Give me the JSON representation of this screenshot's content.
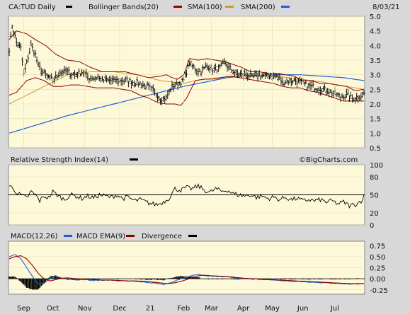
{
  "chart_data": [
    {
      "type": "line",
      "panel": "price",
      "title_symbol": "CA:TUD Daily",
      "legend": [
        {
          "name": "CA:TUD Daily",
          "color": "#000000"
        },
        {
          "name": "Bollinger Bands(20)",
          "color": "#8b0000"
        },
        {
          "name": "SMA(100)",
          "color": "#d4962a"
        },
        {
          "name": "SMA(200)",
          "color": "#1a5fd6"
        }
      ],
      "date_label": "8/03/21",
      "ylim": [
        0.5,
        5.0
      ],
      "yticks": [
        "5.0",
        "4.5",
        "4.0",
        "3.5",
        "3.0",
        "2.5",
        "2.0",
        "1.5",
        "1.0",
        "0.5"
      ],
      "x_months": [
        "Sep",
        "Oct",
        "Nov",
        "Dec",
        "21",
        "Feb",
        "Mar",
        "Apr",
        "May",
        "Jun",
        "Jul"
      ],
      "x_month_index": [
        10,
        30,
        52,
        76,
        97,
        120,
        139,
        161,
        181,
        202,
        224
      ],
      "n_days": 245,
      "price_knots": [
        [
          0,
          3.9
        ],
        [
          2,
          4.7
        ],
        [
          5,
          4.1
        ],
        [
          8,
          3.9
        ],
        [
          10,
          3.0
        ],
        [
          12,
          3.4
        ],
        [
          15,
          4.0
        ],
        [
          18,
          3.7
        ],
        [
          20,
          3.3
        ],
        [
          25,
          3.0
        ],
        [
          30,
          2.8
        ],
        [
          35,
          3.1
        ],
        [
          40,
          3.1
        ],
        [
          45,
          3.0
        ],
        [
          50,
          3.1
        ],
        [
          55,
          2.9
        ],
        [
          60,
          2.9
        ],
        [
          65,
          2.8
        ],
        [
          70,
          2.8
        ],
        [
          75,
          2.8
        ],
        [
          80,
          2.8
        ],
        [
          85,
          2.75
        ],
        [
          90,
          2.7
        ],
        [
          95,
          2.6
        ],
        [
          100,
          2.4
        ],
        [
          104,
          2.2
        ],
        [
          108,
          2.2
        ],
        [
          112,
          2.6
        ],
        [
          116,
          2.7
        ],
        [
          120,
          2.8
        ],
        [
          124,
          3.4
        ],
        [
          128,
          3.2
        ],
        [
          132,
          3.1
        ],
        [
          136,
          3.3
        ],
        [
          140,
          3.2
        ],
        [
          144,
          3.2
        ],
        [
          148,
          3.4
        ],
        [
          152,
          3.2
        ],
        [
          156,
          3.05
        ],
        [
          160,
          3.0
        ],
        [
          164,
          3.0
        ],
        [
          168,
          2.9
        ],
        [
          172,
          3.0
        ],
        [
          176,
          2.95
        ],
        [
          180,
          2.95
        ],
        [
          184,
          2.95
        ],
        [
          188,
          2.75
        ],
        [
          192,
          2.8
        ],
        [
          196,
          2.8
        ],
        [
          200,
          2.75
        ],
        [
          204,
          2.65
        ],
        [
          208,
          2.6
        ],
        [
          212,
          2.55
        ],
        [
          216,
          2.5
        ],
        [
          220,
          2.45
        ],
        [
          224,
          2.35
        ],
        [
          228,
          2.25
        ],
        [
          232,
          2.3
        ],
        [
          236,
          2.2
        ],
        [
          240,
          2.25
        ],
        [
          244,
          2.35
        ]
      ],
      "bb_upper_knots": [
        [
          0,
          4.2
        ],
        [
          5,
          4.5
        ],
        [
          12,
          4.4
        ],
        [
          18,
          4.2
        ],
        [
          25,
          4.0
        ],
        [
          32,
          3.7
        ],
        [
          40,
          3.5
        ],
        [
          48,
          3.45
        ],
        [
          56,
          3.25
        ],
        [
          64,
          3.1
        ],
        [
          72,
          3.1
        ],
        [
          80,
          3.1
        ],
        [
          88,
          3.0
        ],
        [
          96,
          2.9
        ],
        [
          104,
          2.95
        ],
        [
          108,
          3.0
        ],
        [
          112,
          2.9
        ],
        [
          116,
          2.85
        ],
        [
          120,
          3.0
        ],
        [
          124,
          3.55
        ],
        [
          130,
          3.5
        ],
        [
          136,
          3.55
        ],
        [
          142,
          3.5
        ],
        [
          148,
          3.45
        ],
        [
          154,
          3.35
        ],
        [
          160,
          3.25
        ],
        [
          166,
          3.1
        ],
        [
          172,
          3.1
        ],
        [
          178,
          3.05
        ],
        [
          184,
          3.05
        ],
        [
          190,
          3.0
        ],
        [
          196,
          2.95
        ],
        [
          202,
          2.8
        ],
        [
          208,
          2.8
        ],
        [
          214,
          2.7
        ],
        [
          220,
          2.7
        ],
        [
          226,
          2.65
        ],
        [
          232,
          2.6
        ],
        [
          238,
          2.45
        ],
        [
          244,
          2.5
        ]
      ],
      "bb_lower_knots": [
        [
          0,
          2.3
        ],
        [
          5,
          2.4
        ],
        [
          12,
          2.8
        ],
        [
          18,
          2.9
        ],
        [
          24,
          2.8
        ],
        [
          30,
          2.6
        ],
        [
          36,
          2.6
        ],
        [
          42,
          2.65
        ],
        [
          48,
          2.65
        ],
        [
          54,
          2.6
        ],
        [
          60,
          2.55
        ],
        [
          66,
          2.55
        ],
        [
          72,
          2.55
        ],
        [
          78,
          2.5
        ],
        [
          84,
          2.45
        ],
        [
          90,
          2.3
        ],
        [
          96,
          2.2
        ],
        [
          102,
          2.05
        ],
        [
          108,
          2.0
        ],
        [
          114,
          2.0
        ],
        [
          118,
          1.95
        ],
        [
          122,
          2.2
        ],
        [
          128,
          2.8
        ],
        [
          134,
          2.85
        ],
        [
          140,
          2.85
        ],
        [
          146,
          2.9
        ],
        [
          152,
          2.95
        ],
        [
          158,
          2.9
        ],
        [
          164,
          2.85
        ],
        [
          170,
          2.8
        ],
        [
          176,
          2.75
        ],
        [
          182,
          2.7
        ],
        [
          188,
          2.6
        ],
        [
          194,
          2.55
        ],
        [
          200,
          2.55
        ],
        [
          206,
          2.45
        ],
        [
          212,
          2.4
        ],
        [
          218,
          2.3
        ],
        [
          224,
          2.2
        ],
        [
          230,
          2.1
        ],
        [
          236,
          2.1
        ],
        [
          244,
          2.1
        ]
      ],
      "sma100_knots": [
        [
          0,
          2.0
        ],
        [
          8,
          2.2
        ],
        [
          16,
          2.4
        ],
        [
          24,
          2.6
        ],
        [
          32,
          2.8
        ],
        [
          40,
          3.0
        ],
        [
          48,
          3.05
        ],
        [
          56,
          3.1
        ],
        [
          64,
          3.1
        ],
        [
          72,
          3.1
        ],
        [
          80,
          3.05
        ],
        [
          88,
          3.0
        ],
        [
          96,
          2.9
        ],
        [
          104,
          2.8
        ],
        [
          112,
          2.75
        ],
        [
          120,
          2.7
        ],
        [
          128,
          2.8
        ],
        [
          136,
          2.85
        ],
        [
          144,
          2.9
        ],
        [
          152,
          2.95
        ],
        [
          160,
          2.95
        ],
        [
          168,
          2.95
        ],
        [
          176,
          3.0
        ],
        [
          184,
          2.95
        ],
        [
          192,
          2.9
        ],
        [
          200,
          2.85
        ],
        [
          208,
          2.8
        ],
        [
          216,
          2.75
        ],
        [
          224,
          2.65
        ],
        [
          232,
          2.6
        ],
        [
          238,
          2.55
        ],
        [
          244,
          2.5
        ]
      ],
      "sma200_knots": [
        [
          0,
          1.0
        ],
        [
          20,
          1.3
        ],
        [
          40,
          1.6
        ],
        [
          60,
          1.85
        ],
        [
          80,
          2.1
        ],
        [
          100,
          2.35
        ],
        [
          120,
          2.6
        ],
        [
          140,
          2.8
        ],
        [
          150,
          2.9
        ],
        [
          160,
          2.95
        ],
        [
          180,
          3.0
        ],
        [
          200,
          3.0
        ],
        [
          215,
          2.95
        ],
        [
          230,
          2.9
        ],
        [
          244,
          2.8
        ]
      ]
    },
    {
      "type": "line",
      "panel": "rsi",
      "title": "Relative Strength Index(14)",
      "credit": "©BigCharts.com",
      "ylim": [
        0,
        100
      ],
      "yticks": [
        "100",
        "80",
        "50",
        "20",
        "0"
      ],
      "midline": 50,
      "rsi_knots": [
        [
          0,
          65
        ],
        [
          3,
          60
        ],
        [
          6,
          52
        ],
        [
          9,
          48
        ],
        [
          12,
          45
        ],
        [
          15,
          55
        ],
        [
          18,
          50
        ],
        [
          21,
          40
        ],
        [
          24,
          48
        ],
        [
          27,
          45
        ],
        [
          30,
          55
        ],
        [
          34,
          48
        ],
        [
          38,
          42
        ],
        [
          42,
          50
        ],
        [
          46,
          48
        ],
        [
          50,
          44
        ],
        [
          54,
          48
        ],
        [
          58,
          45
        ],
        [
          62,
          50
        ],
        [
          66,
          48
        ],
        [
          70,
          46
        ],
        [
          74,
          50
        ],
        [
          78,
          44
        ],
        [
          82,
          46
        ],
        [
          86,
          40
        ],
        [
          90,
          42
        ],
        [
          94,
          38
        ],
        [
          98,
          35
        ],
        [
          102,
          34
        ],
        [
          106,
          38
        ],
        [
          110,
          45
        ],
        [
          114,
          60
        ],
        [
          118,
          58
        ],
        [
          122,
          62
        ],
        [
          126,
          60
        ],
        [
          130,
          65
        ],
        [
          134,
          58
        ],
        [
          138,
          54
        ],
        [
          142,
          60
        ],
        [
          146,
          56
        ],
        [
          150,
          58
        ],
        [
          154,
          52
        ],
        [
          158,
          50
        ],
        [
          162,
          48
        ],
        [
          166,
          50
        ],
        [
          170,
          46
        ],
        [
          174,
          48
        ],
        [
          178,
          44
        ],
        [
          182,
          46
        ],
        [
          186,
          42
        ],
        [
          190,
          46
        ],
        [
          194,
          42
        ],
        [
          198,
          44
        ],
        [
          202,
          40
        ],
        [
          206,
          42
        ],
        [
          210,
          40
        ],
        [
          214,
          42
        ],
        [
          218,
          38
        ],
        [
          222,
          40
        ],
        [
          226,
          35
        ],
        [
          230,
          38
        ],
        [
          234,
          32
        ],
        [
          238,
          34
        ],
        [
          242,
          40
        ],
        [
          244,
          48
        ]
      ]
    },
    {
      "type": "line",
      "panel": "macd",
      "legend": [
        {
          "name": "MACD(12,26)",
          "color": "#000000"
        },
        {
          "name": "MACD EMA(9)",
          "color": "#1a5fd6"
        },
        {
          "name": "Divergence",
          "color": "#000000"
        }
      ],
      "ylim": [
        -0.35,
        0.85
      ],
      "yticks": [
        "0.75",
        "0.50",
        "0.25",
        "0.00",
        "-0.25"
      ],
      "macd_knots": [
        [
          0,
          0.5
        ],
        [
          4,
          0.55
        ],
        [
          8,
          0.45
        ],
        [
          12,
          0.25
        ],
        [
          16,
          0.05
        ],
        [
          20,
          -0.12
        ],
        [
          24,
          -0.1
        ],
        [
          28,
          0.0
        ],
        [
          32,
          0.05
        ],
        [
          36,
          0.02
        ],
        [
          40,
          0.0
        ],
        [
          46,
          -0.03
        ],
        [
          52,
          -0.02
        ],
        [
          58,
          -0.04
        ],
        [
          64,
          -0.03
        ],
        [
          70,
          -0.03
        ],
        [
          76,
          -0.05
        ],
        [
          82,
          -0.05
        ],
        [
          88,
          -0.06
        ],
        [
          94,
          -0.08
        ],
        [
          100,
          -0.1
        ],
        [
          106,
          -0.13
        ],
        [
          110,
          -0.1
        ],
        [
          114,
          -0.05
        ],
        [
          118,
          0.0
        ],
        [
          122,
          0.03
        ],
        [
          126,
          0.08
        ],
        [
          130,
          0.1
        ],
        [
          134,
          0.07
        ],
        [
          138,
          0.06
        ],
        [
          144,
          0.05
        ],
        [
          150,
          0.04
        ],
        [
          156,
          0.02
        ],
        [
          162,
          0.0
        ],
        [
          168,
          -0.01
        ],
        [
          174,
          -0.02
        ],
        [
          180,
          -0.02
        ],
        [
          186,
          -0.04
        ],
        [
          192,
          -0.05
        ],
        [
          198,
          -0.06
        ],
        [
          204,
          -0.07
        ],
        [
          210,
          -0.08
        ],
        [
          216,
          -0.09
        ],
        [
          222,
          -0.1
        ],
        [
          228,
          -0.11
        ],
        [
          234,
          -0.12
        ],
        [
          240,
          -0.11
        ],
        [
          244,
          -0.1
        ]
      ],
      "signal_knots": [
        [
          0,
          0.45
        ],
        [
          4,
          0.5
        ],
        [
          8,
          0.52
        ],
        [
          12,
          0.45
        ],
        [
          16,
          0.3
        ],
        [
          20,
          0.12
        ],
        [
          24,
          0.0
        ],
        [
          28,
          -0.05
        ],
        [
          32,
          -0.02
        ],
        [
          36,
          0.01
        ],
        [
          40,
          0.02
        ],
        [
          46,
          0.0
        ],
        [
          52,
          -0.01
        ],
        [
          58,
          -0.02
        ],
        [
          64,
          -0.03
        ],
        [
          70,
          -0.03
        ],
        [
          76,
          -0.04
        ],
        [
          82,
          -0.05
        ],
        [
          88,
          -0.05
        ],
        [
          94,
          -0.06
        ],
        [
          100,
          -0.08
        ],
        [
          106,
          -0.1
        ],
        [
          110,
          -0.11
        ],
        [
          114,
          -0.09
        ],
        [
          118,
          -0.06
        ],
        [
          122,
          -0.02
        ],
        [
          126,
          0.03
        ],
        [
          130,
          0.07
        ],
        [
          134,
          0.08
        ],
        [
          138,
          0.07
        ],
        [
          144,
          0.06
        ],
        [
          150,
          0.05
        ],
        [
          156,
          0.03
        ],
        [
          162,
          0.01
        ],
        [
          168,
          0.0
        ],
        [
          174,
          -0.01
        ],
        [
          180,
          -0.02
        ],
        [
          186,
          -0.03
        ],
        [
          192,
          -0.04
        ],
        [
          198,
          -0.05
        ],
        [
          204,
          -0.06
        ],
        [
          210,
          -0.07
        ],
        [
          216,
          -0.08
        ],
        [
          222,
          -0.09
        ],
        [
          228,
          -0.1
        ],
        [
          234,
          -0.11
        ],
        [
          240,
          -0.12
        ],
        [
          244,
          -0.11
        ]
      ]
    }
  ]
}
